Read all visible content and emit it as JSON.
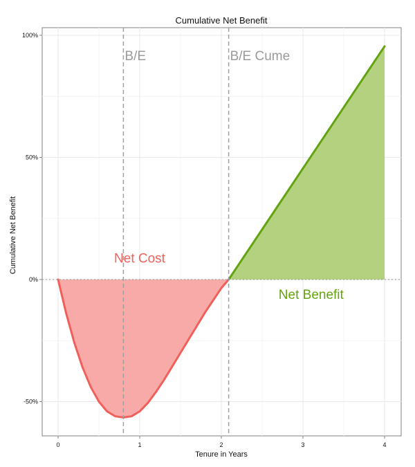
{
  "chart_data": {
    "type": "area",
    "title": "Cumulative Net Benefit",
    "xlabel": "Tenure in Years",
    "ylabel": "Cumulative Net Benefit",
    "xlim": [
      -0.2,
      4.2
    ],
    "ylim": [
      -64,
      106
    ],
    "x_ticks": [
      0,
      1,
      2,
      3,
      4
    ],
    "x_tick_labels": [
      "0",
      "1",
      "2",
      "3",
      "4"
    ],
    "y_ticks": [
      -50,
      0,
      50,
      100
    ],
    "y_tick_labels": [
      "-50%",
      "0%",
      "50%",
      "100%"
    ],
    "grid": true,
    "series": [
      {
        "role": "net-cost",
        "color": "#f0605a",
        "fill": "#f8aaa8",
        "x": [
          0,
          0.1,
          0.2,
          0.3,
          0.4,
          0.5,
          0.6,
          0.7,
          0.8,
          0.9,
          1.0,
          1.1,
          1.2,
          1.3,
          1.4,
          1.5,
          1.6,
          1.7,
          1.8,
          1.9,
          2.0,
          2.09
        ],
        "y": [
          0,
          -14,
          -26,
          -36,
          -44,
          -50,
          -54,
          -56,
          -56.5,
          -56,
          -54,
          -50.5,
          -46,
          -41,
          -35.5,
          -30,
          -24.5,
          -19,
          -13.5,
          -8.5,
          -3.5,
          0
        ]
      },
      {
        "role": "net-benefit",
        "color": "#63a30f",
        "fill": "#b3d17f",
        "x": [
          2.09,
          4.0
        ],
        "y": [
          0,
          95.5
        ]
      }
    ],
    "vlines": [
      {
        "x": 0.8,
        "label": "B/E"
      },
      {
        "x": 2.09,
        "label": "B/E Cume"
      }
    ],
    "hline": {
      "y": 0
    },
    "annotations": [
      {
        "text": "Net Cost",
        "x": 1.0,
        "y": 7,
        "color": "#f0605a"
      },
      {
        "text": "Net Benefit",
        "x": 3.1,
        "y": -8,
        "color": "#63a30f"
      }
    ]
  }
}
